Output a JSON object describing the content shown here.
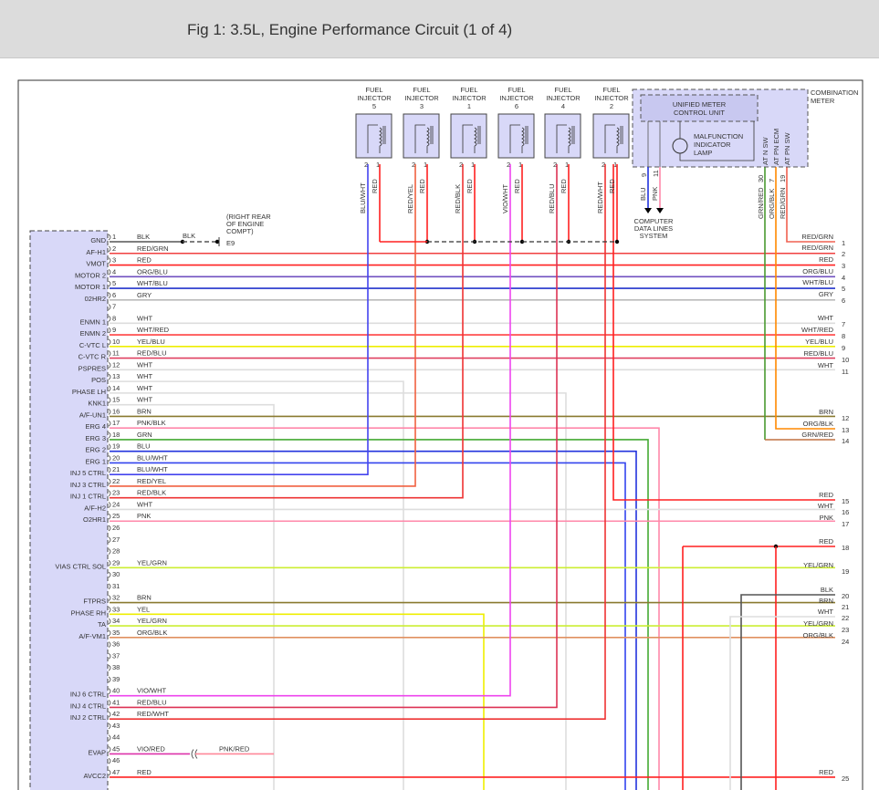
{
  "title": "Fig 1: 3.5L, Engine Performance Circuit (1 of 4)",
  "injectors": [
    {
      "name": [
        "FUEL",
        "INJECTOR",
        "5"
      ],
      "pin2_wire": "BLU/WHT",
      "pin1_wire": "RED",
      "pin2_color": "#4444ee"
    },
    {
      "name": [
        "FUEL",
        "INJECTOR",
        "3"
      ],
      "pin2_wire": "RED/YEL",
      "pin1_wire": "RED",
      "pin2_color": "#f06040"
    },
    {
      "name": [
        "FUEL",
        "INJECTOR",
        "1"
      ],
      "pin2_wire": "RED/BLK",
      "pin1_wire": "RED",
      "pin2_color": "#ee3333"
    },
    {
      "name": [
        "FUEL",
        "INJECTOR",
        "6"
      ],
      "pin2_wire": "VIO/WHT",
      "pin1_wire": "RED",
      "pin2_color": "#ee44ee"
    },
    {
      "name": [
        "FUEL",
        "INJECTOR",
        "4"
      ],
      "pin2_wire": "RED/BLU",
      "pin1_wire": "RED",
      "pin2_color": "#dd3355"
    },
    {
      "name": [
        "FUEL",
        "INJECTOR",
        "2"
      ],
      "pin2_wire": "RED/WHT",
      "pin1_wire": "RED",
      "pin2_color": "#ee3333"
    }
  ],
  "injector_pin_numbers": [
    "2",
    "1"
  ],
  "meter": {
    "title": [
      "COMBINATION",
      "METER"
    ],
    "unit": [
      "UNIFIED METER",
      "CONTROL UNIT"
    ],
    "lamp": [
      "MALFUNCTION",
      "INDICATOR",
      "LAMP"
    ],
    "switches": [
      "AT N SW",
      "AT PN ECM",
      "AT PN SW"
    ],
    "switch_pins": [
      "30",
      "7",
      "19"
    ],
    "switch_wires": [
      "GRN/RED",
      "ORG/BLK",
      "RED/GRN"
    ],
    "data_pins": [
      "9",
      "11"
    ],
    "data_wires": [
      "BLU",
      "PNK"
    ],
    "data_system": [
      "COMPUTER",
      "DATA LINES",
      "SYSTEM"
    ]
  },
  "ground": {
    "wire": "BLK",
    "location": [
      "(RIGHT REAR",
      "OF ENGINE",
      "COMPT)"
    ],
    "id": "E9"
  },
  "evap_splice_wire": "PNK/RED",
  "ecm_pins": [
    {
      "pin": "1",
      "signal": "GND",
      "wire": "BLK",
      "color": "#555555"
    },
    {
      "pin": "2",
      "signal": "AF-H1",
      "wire": "RED/GRN",
      "color": "#f04040"
    },
    {
      "pin": "3",
      "signal": "VMOT",
      "wire": "RED",
      "color": "#ff2020"
    },
    {
      "pin": "4",
      "signal": "MOTOR 2",
      "wire": "ORG/BLU",
      "color": "#7050c0"
    },
    {
      "pin": "5",
      "signal": "MOTOR 1",
      "wire": "WHT/BLU",
      "color": "#2233cc"
    },
    {
      "pin": "6",
      "signal": "02HR2",
      "wire": "GRY",
      "color": "#bbbbbb"
    },
    {
      "pin": "7",
      "signal": "",
      "wire": "",
      "color": ""
    },
    {
      "pin": "8",
      "signal": "ENMN 1",
      "wire": "WHT",
      "color": "#dddddd"
    },
    {
      "pin": "9",
      "signal": "ENMN 2",
      "wire": "WHT/RED",
      "color": "#ff4040"
    },
    {
      "pin": "10",
      "signal": "C-VTC L",
      "wire": "YEL/BLU",
      "color": "#eeee00"
    },
    {
      "pin": "11",
      "signal": "C-VTC R",
      "wire": "RED/BLU",
      "color": "#e04060"
    },
    {
      "pin": "12",
      "signal": "PSPRES",
      "wire": "WHT",
      "color": "#dddddd"
    },
    {
      "pin": "13",
      "signal": "POS",
      "wire": "WHT",
      "color": "#dddddd"
    },
    {
      "pin": "14",
      "signal": "PHASE LH",
      "wire": "WHT",
      "color": "#dddddd"
    },
    {
      "pin": "15",
      "signal": "KNK1",
      "wire": "WHT",
      "color": "#dddddd"
    },
    {
      "pin": "16",
      "signal": "A/F-UN1",
      "wire": "BRN",
      "color": "#8a7a30"
    },
    {
      "pin": "17",
      "signal": "ERG 4",
      "wire": "PNK/BLK",
      "color": "#ff88aa"
    },
    {
      "pin": "18",
      "signal": "ERG 3",
      "wire": "GRN",
      "color": "#44aa33"
    },
    {
      "pin": "19",
      "signal": "ERG 2",
      "wire": "BLU",
      "color": "#2233dd"
    },
    {
      "pin": "20",
      "signal": "ERG 1",
      "wire": "BLU/WHT",
      "color": "#3344ee"
    },
    {
      "pin": "21",
      "signal": "INJ 5 CTRL",
      "wire": "BLU/WHT",
      "color": "#4444ee"
    },
    {
      "pin": "22",
      "signal": "INJ 3 CTRL",
      "wire": "RED/YEL",
      "color": "#f06040"
    },
    {
      "pin": "23",
      "signal": "INJ 1 CTRL",
      "wire": "RED/BLK",
      "color": "#ee3333"
    },
    {
      "pin": "24",
      "signal": "A/F-H2",
      "wire": "WHT",
      "color": "#dddddd"
    },
    {
      "pin": "25",
      "signal": "O2HR1",
      "wire": "PNK",
      "color": "#ff88aa"
    },
    {
      "pin": "26",
      "signal": "",
      "wire": "",
      "color": ""
    },
    {
      "pin": "27",
      "signal": "",
      "wire": "",
      "color": ""
    },
    {
      "pin": "28",
      "signal": "",
      "wire": "",
      "color": ""
    },
    {
      "pin": "29",
      "signal": "VIAS CTRL SOL",
      "wire": "YEL/GRN",
      "color": "#ccee33"
    },
    {
      "pin": "30",
      "signal": "",
      "wire": "",
      "color": ""
    },
    {
      "pin": "31",
      "signal": "",
      "wire": "",
      "color": ""
    },
    {
      "pin": "32",
      "signal": "FTPRS",
      "wire": "BRN",
      "color": "#8a7a30"
    },
    {
      "pin": "33",
      "signal": "PHASE RH",
      "wire": "YEL",
      "color": "#eeee00"
    },
    {
      "pin": "34",
      "signal": "TA",
      "wire": "YEL/GRN",
      "color": "#ccee33"
    },
    {
      "pin": "35",
      "signal": "A/F-VM1",
      "wire": "ORG/BLK",
      "color": "#e09060"
    },
    {
      "pin": "36",
      "signal": "",
      "wire": "",
      "color": ""
    },
    {
      "pin": "37",
      "signal": "",
      "wire": "",
      "color": ""
    },
    {
      "pin": "38",
      "signal": "",
      "wire": "",
      "color": ""
    },
    {
      "pin": "39",
      "signal": "",
      "wire": "",
      "color": ""
    },
    {
      "pin": "40",
      "signal": "INJ 6 CTRL",
      "wire": "VIO/WHT",
      "color": "#ee44ee"
    },
    {
      "pin": "41",
      "signal": "INJ 4 CTRL",
      "wire": "RED/BLU",
      "color": "#dd3355"
    },
    {
      "pin": "42",
      "signal": "INJ 2 CTRL",
      "wire": "RED/WHT",
      "color": "#ee3333"
    },
    {
      "pin": "43",
      "signal": "",
      "wire": "",
      "color": ""
    },
    {
      "pin": "44",
      "signal": "",
      "wire": "",
      "color": ""
    },
    {
      "pin": "45",
      "signal": "EVAP",
      "wire": "VIO/RED",
      "color": "#dd33aa"
    },
    {
      "pin": "46",
      "signal": "",
      "wire": "",
      "color": ""
    },
    {
      "pin": "47",
      "signal": "AVCC2",
      "wire": "RED",
      "color": "#ff2020"
    }
  ],
  "right_connector": [
    {
      "pin": "1",
      "wire": "RED/GRN",
      "color": "#f06050"
    },
    {
      "pin": "2",
      "wire": "RED/GRN",
      "color": "#f04040"
    },
    {
      "pin": "3",
      "wire": "RED",
      "color": "#ff2020"
    },
    {
      "pin": "4",
      "wire": "ORG/BLU",
      "color": "#7050c0"
    },
    {
      "pin": "5",
      "wire": "WHT/BLU",
      "color": "#2233cc"
    },
    {
      "pin": "6",
      "wire": "GRY",
      "color": "#bbbbbb"
    },
    {
      "pin": "7",
      "wire": "WHT",
      "color": "#dddddd"
    },
    {
      "pin": "8",
      "wire": "WHT/RED",
      "color": "#ff4040"
    },
    {
      "pin": "9",
      "wire": "YEL/BLU",
      "color": "#eeee00"
    },
    {
      "pin": "10",
      "wire": "RED/BLU",
      "color": "#e04060"
    },
    {
      "pin": "11",
      "wire": "WHT",
      "color": "#dddddd"
    },
    {
      "pin": "12",
      "wire": "BRN",
      "color": "#8a7a30"
    },
    {
      "pin": "13",
      "wire": "ORG/BLK",
      "color": "#ff8800"
    },
    {
      "pin": "14",
      "wire": "GRN/RED",
      "color": "#c07040"
    },
    {
      "pin": "15",
      "wire": "RED",
      "color": "#ff2020"
    },
    {
      "pin": "16",
      "wire": "WHT",
      "color": "#dddddd"
    },
    {
      "pin": "17",
      "wire": "PNK",
      "color": "#ff88aa"
    },
    {
      "pin": "18",
      "wire": "RED",
      "color": "#ff2020"
    },
    {
      "pin": "19",
      "wire": "YEL/GRN",
      "color": "#ccee33"
    },
    {
      "pin": "20",
      "wire": "BLK",
      "color": "#555555"
    },
    {
      "pin": "21",
      "wire": "BRN",
      "color": "#8a7a30"
    },
    {
      "pin": "22",
      "wire": "WHT",
      "color": "#dddddd"
    },
    {
      "pin": "23",
      "wire": "YEL/GRN",
      "color": "#ccee33"
    },
    {
      "pin": "24",
      "wire": "ORG/BLK",
      "color": "#e09060"
    },
    {
      "pin": "25",
      "wire": "RED",
      "color": "#ff2020"
    }
  ]
}
